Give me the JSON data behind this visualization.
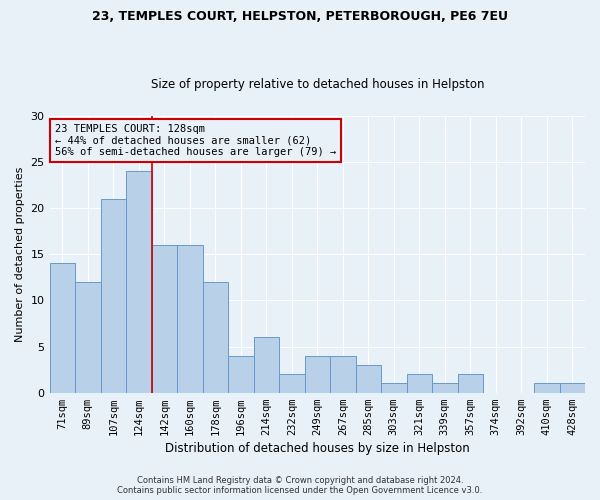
{
  "title1": "23, TEMPLES COURT, HELPSTON, PETERBOROUGH, PE6 7EU",
  "title2": "Size of property relative to detached houses in Helpston",
  "xlabel": "Distribution of detached houses by size in Helpston",
  "ylabel": "Number of detached properties",
  "categories": [
    "71sqm",
    "89sqm",
    "107sqm",
    "124sqm",
    "142sqm",
    "160sqm",
    "178sqm",
    "196sqm",
    "214sqm",
    "232sqm",
    "249sqm",
    "267sqm",
    "285sqm",
    "303sqm",
    "321sqm",
    "339sqm",
    "357sqm",
    "374sqm",
    "392sqm",
    "410sqm",
    "428sqm"
  ],
  "values": [
    14,
    12,
    21,
    24,
    16,
    16,
    12,
    4,
    6,
    2,
    4,
    4,
    3,
    1,
    2,
    1,
    2,
    0,
    0,
    1,
    1
  ],
  "bar_color": "#b8d0e8",
  "bar_edge_color": "#6699cc",
  "ylim": [
    0,
    30
  ],
  "yticks": [
    0,
    5,
    10,
    15,
    20,
    25,
    30
  ],
  "ref_line_index": 3,
  "ref_line_color": "#cc0000",
  "annotation_text": "23 TEMPLES COURT: 128sqm\n← 44% of detached houses are smaller (62)\n56% of semi-detached houses are larger (79) →",
  "annotation_box_color": "#cc0000",
  "footer_line1": "Contains HM Land Registry data © Crown copyright and database right 2024.",
  "footer_line2": "Contains public sector information licensed under the Open Government Licence v3.0.",
  "bg_color": "#e8f0f8",
  "grid_color": "#ffffff",
  "title1_fontsize": 9,
  "title2_fontsize": 8.5,
  "xlabel_fontsize": 8.5,
  "ylabel_fontsize": 8,
  "tick_fontsize": 7.5,
  "footer_fontsize": 6,
  "annot_fontsize": 7.5
}
